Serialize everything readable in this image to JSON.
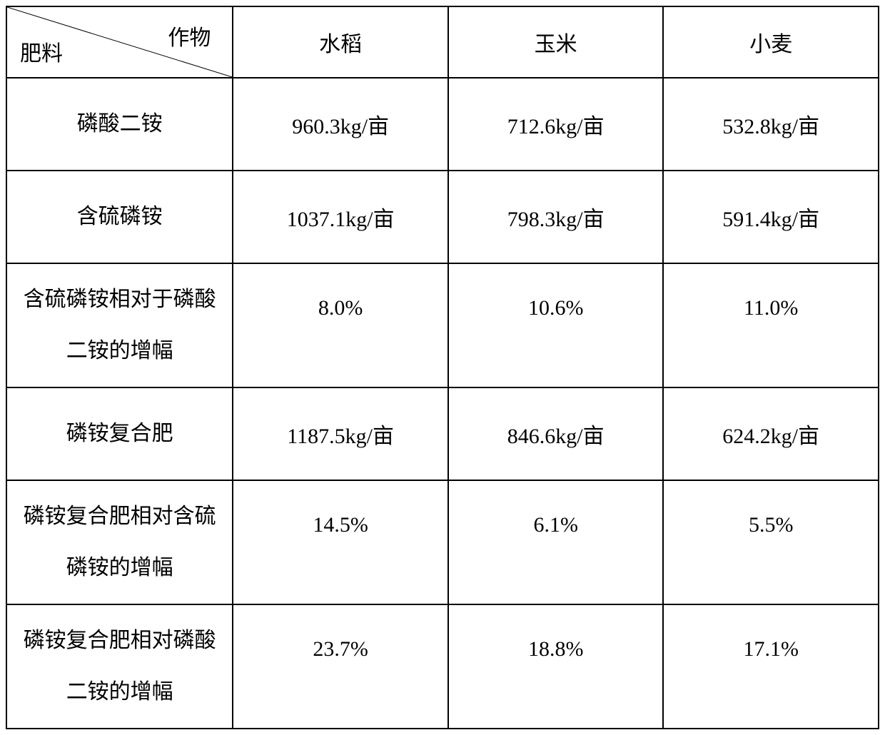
{
  "table": {
    "corner": {
      "top_label": "作物",
      "bottom_label": "肥料"
    },
    "columns": [
      "水稻",
      "玉米",
      "小麦"
    ],
    "rows": [
      {
        "header": "磷酸二铵",
        "multiline": false,
        "cells": [
          "960.3kg/亩",
          "712.6kg/亩",
          "532.8kg/亩"
        ]
      },
      {
        "header": "含硫磷铵",
        "multiline": false,
        "cells": [
          "1037.1kg/亩",
          "798.3kg/亩",
          "591.4kg/亩"
        ]
      },
      {
        "header": "含硫磷铵相对于磷酸二铵的增幅",
        "multiline": true,
        "cells": [
          "8.0%",
          "10.6%",
          "11.0%"
        ]
      },
      {
        "header": "磷铵复合肥",
        "multiline": false,
        "cells": [
          "1187.5kg/亩",
          "846.6kg/亩",
          "624.2kg/亩"
        ]
      },
      {
        "header": "磷铵复合肥相对含硫磷铵的增幅",
        "multiline": true,
        "cells": [
          "14.5%",
          "6.1%",
          "5.5%"
        ]
      },
      {
        "header": "磷铵复合肥相对磷酸二铵的增幅",
        "multiline": true,
        "cells": [
          "23.7%",
          "18.8%",
          "17.1%"
        ]
      }
    ],
    "styling": {
      "border_color": "#000000",
      "border_width": 2,
      "background_color": "#ffffff",
      "text_color": "#000000",
      "font_size": 30,
      "font_family": "SimSun",
      "header_row_height": 100,
      "data_row_height": 130,
      "col_widths": [
        0.26,
        0.247,
        0.247,
        0.247
      ]
    }
  }
}
